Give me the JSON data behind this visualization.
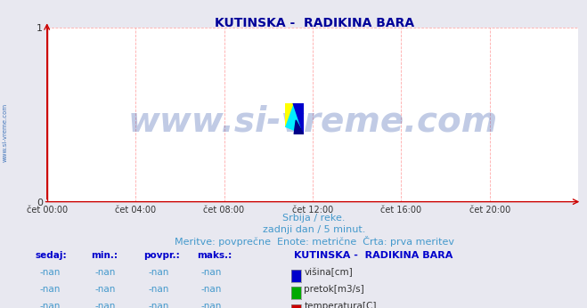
{
  "title": "KUTINSKA -  RADIKINA BARA",
  "title_color": "#000099",
  "title_fontsize": 10,
  "bg_color": "#e8e8f0",
  "plot_bg_color": "#ffffff",
  "xlim": [
    0,
    288
  ],
  "ylim": [
    0,
    1
  ],
  "yticks": [
    0,
    1
  ],
  "xtick_labels": [
    "čet 00:00",
    "čet 04:00",
    "čet 08:00",
    "čet 12:00",
    "čet 16:00",
    "čet 20:00"
  ],
  "xtick_positions": [
    0,
    48,
    96,
    144,
    192,
    240
  ],
  "grid_color": "#ffaaaa",
  "grid_linestyle": "--",
  "axis_color": "#cc0000",
  "watermark_text": "www.si-vreme.com",
  "watermark_color": "#3355aa",
  "watermark_alpha": 0.3,
  "watermark_fontsize": 28,
  "sidebar_text": "www.si-vreme.com",
  "sidebar_color": "#4477bb",
  "subtitle_lines": [
    "Srbija / reke.",
    "zadnji dan / 5 minut.",
    "Meritve: povprečne  Enote: metrične  Črta: prva meritev"
  ],
  "subtitle_color": "#4499cc",
  "subtitle_fontsize": 8,
  "table_header": [
    "sedaj:",
    "min.:",
    "povpr.:",
    "maks.:"
  ],
  "table_header_color": "#0000cc",
  "table_station": "KUTINSKA -  RADIKINA BARA",
  "legend_entries": [
    {
      "label": "višina[cm]",
      "color": "#0000cc"
    },
    {
      "label": "pretok[m3/s]",
      "color": "#00aa00"
    },
    {
      "label": "temperatura[C]",
      "color": "#cc0000"
    }
  ],
  "table_values": [
    "-nan",
    "-nan",
    "-nan",
    "-nan"
  ],
  "table_color": "#4499cc",
  "logo_colors": {
    "yellow": "#ffff00",
    "cyan": "#00eeff",
    "blue": "#0000cc",
    "dark_blue": "#000088"
  }
}
